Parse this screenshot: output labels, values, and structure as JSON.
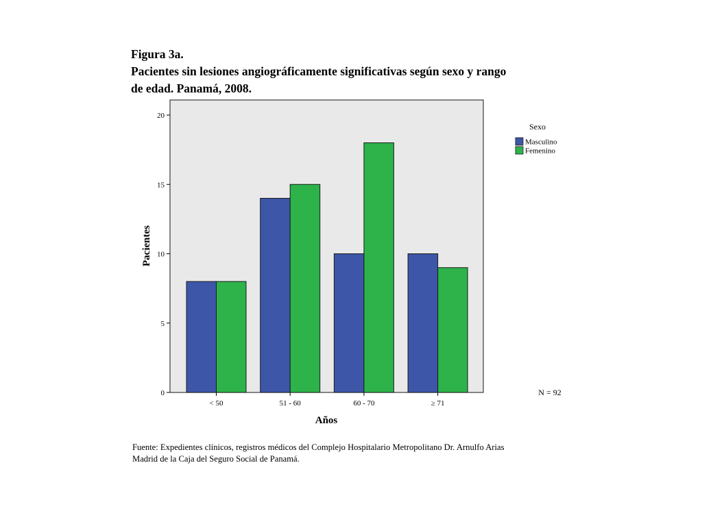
{
  "figure": {
    "caption_label": "Figura 3a.",
    "title_line1": "Pacientes sin lesiones angiográficamente significativas según sexo y rango",
    "title_line2": "de edad. Panamá, 2008.",
    "source_line1": "Fuente: Expedientes clínicos, registros médicos del Complejo Hospitalario Metropolitano Dr. Arnulfo Arias",
    "source_line2": "Madrid de la Caja del Seguro Social de Panamá."
  },
  "chart_data": {
    "type": "bar",
    "title": "Pacientes sin lesiones angiográficamente significativas según sexo y rango de edad. Panamá, 2008.",
    "categories": [
      "< 50",
      "51 - 60",
      "60 - 70",
      "≥ 71"
    ],
    "series": [
      {
        "name": "Masculino",
        "color": "#3d56a8",
        "values": [
          8,
          14,
          10,
          10
        ]
      },
      {
        "name": "Femenino",
        "color": "#2db34a",
        "values": [
          8,
          15,
          18,
          9
        ]
      }
    ],
    "xlabel": "Años",
    "ylabel": "Pacientes",
    "ylim": [
      0,
      20
    ],
    "yticks": [
      0,
      5,
      10,
      15,
      20
    ],
    "grid": false,
    "plot_background": "#e9e9e9",
    "legend": {
      "title": "Sexo",
      "placement": "top-right outside plot"
    },
    "annotation": "N = 92"
  }
}
